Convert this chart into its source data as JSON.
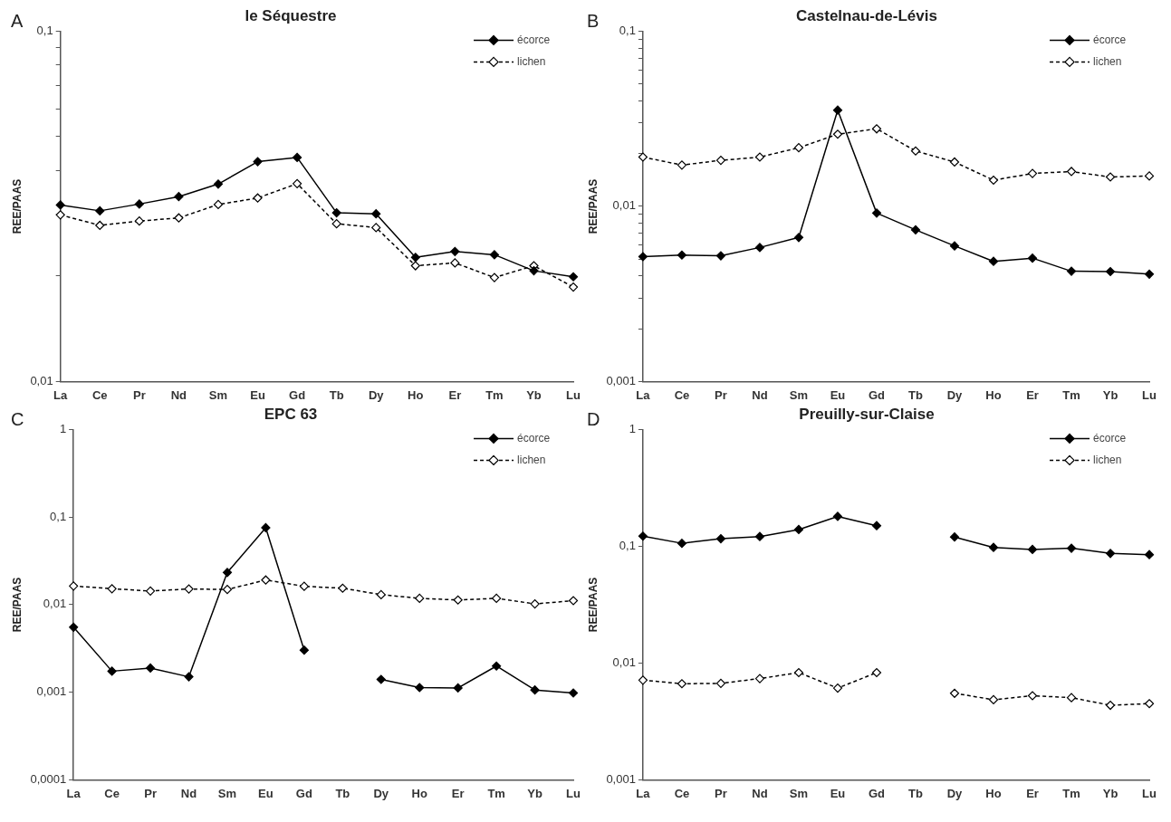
{
  "chart_data": [
    {
      "type": "line",
      "title": "le Séquestre",
      "annotations": [
        "A"
      ],
      "ylabel": "REE/PAAS",
      "categories": [
        "La",
        "Ce",
        "Pr",
        "Nd",
        "Sm",
        "Eu",
        "Gd",
        "Tb",
        "Dy",
        "Ho",
        "Er",
        "Tm",
        "Yb",
        "Lu"
      ],
      "log": "y",
      "ylim": [
        0.01,
        0.1
      ],
      "yticks": [
        {
          "value": 0.01,
          "label": "0,01"
        },
        {
          "value": 0.02,
          "label": null
        },
        {
          "value": 0.03,
          "label": null
        },
        {
          "value": 0.04,
          "label": null
        },
        {
          "value": 0.05,
          "label": null
        },
        {
          "value": 0.06,
          "label": null
        },
        {
          "value": 0.07,
          "label": null
        },
        {
          "value": 0.08,
          "label": null
        },
        {
          "value": 0.09,
          "label": null
        },
        {
          "value": 0.1,
          "label": "0,1"
        }
      ],
      "grid": false,
      "legend": "top right",
      "marker": "diamond",
      "series": [
        {
          "name": "écorce",
          "color": "#000000",
          "line_style": "solid",
          "values": [
            0.0319,
            0.0307,
            0.0321,
            0.0337,
            0.0366,
            0.0424,
            0.0436,
            0.0303,
            0.0301,
            0.0226,
            0.0235,
            0.023,
            0.0207,
            0.0199
          ]
        },
        {
          "name": "lichen",
          "color": "#000000",
          "line_style": "dashed",
          "values": [
            0.0299,
            0.0279,
            0.0287,
            0.0293,
            0.032,
            0.0334,
            0.0367,
            0.0282,
            0.0275,
            0.0214,
            0.0218,
            0.0198,
            0.0214,
            0.0186
          ]
        }
      ]
    },
    {
      "type": "line",
      "title": "Castelnau-de-Lévis",
      "annotations": [
        "B"
      ],
      "ylabel": "REE/PAAS",
      "categories": [
        "La",
        "Ce",
        "Pr",
        "Nd",
        "Sm",
        "Eu",
        "Gd",
        "Tb",
        "Dy",
        "Ho",
        "Er",
        "Tm",
        "Yb",
        "Lu"
      ],
      "log": "y",
      "ylim": [
        0.001,
        0.1
      ],
      "yticks": [
        {
          "value": 0.001,
          "label": "0,001"
        },
        {
          "value": 0.002,
          "label": null
        },
        {
          "value": 0.003,
          "label": null
        },
        {
          "value": 0.004,
          "label": null
        },
        {
          "value": 0.005,
          "label": null
        },
        {
          "value": 0.006,
          "label": null
        },
        {
          "value": 0.007,
          "label": null
        },
        {
          "value": 0.008,
          "label": null
        },
        {
          "value": 0.009,
          "label": null
        },
        {
          "value": 0.01,
          "label": "0,01"
        },
        {
          "value": 0.02,
          "label": null
        },
        {
          "value": 0.03,
          "label": null
        },
        {
          "value": 0.04,
          "label": null
        },
        {
          "value": 0.05,
          "label": null
        },
        {
          "value": 0.06,
          "label": null
        },
        {
          "value": 0.07,
          "label": null
        },
        {
          "value": 0.08,
          "label": null
        },
        {
          "value": 0.09,
          "label": null
        },
        {
          "value": 0.1,
          "label": "0,1"
        }
      ],
      "grid": false,
      "legend": "top right",
      "marker": "diamond",
      "series": [
        {
          "name": "écorce",
          "color": "#000000",
          "line_style": "solid",
          "values": [
            0.00516,
            0.00527,
            0.00522,
            0.00582,
            0.00664,
            0.0354,
            0.00915,
            0.00734,
            0.00594,
            0.00485,
            0.00506,
            0.00426,
            0.00424,
            0.0041
          ]
        },
        {
          "name": "lichen",
          "color": "#000000",
          "line_style": "dashed",
          "values": [
            0.0191,
            0.0172,
            0.0183,
            0.0191,
            0.0216,
            0.0258,
            0.0277,
            0.0207,
            0.0179,
            0.0141,
            0.0154,
            0.0158,
            0.0147,
            0.0149
          ]
        }
      ]
    },
    {
      "type": "line",
      "title": "EPC 63",
      "annotations": [
        "C"
      ],
      "ylabel": "REE/PAAS",
      "categories": [
        "La",
        "Ce",
        "Pr",
        "Nd",
        "Sm",
        "Eu",
        "Gd",
        "Tb",
        "Dy",
        "Ho",
        "Er",
        "Tm",
        "Yb",
        "Lu"
      ],
      "log": "y",
      "ylim": [
        0.0001,
        1
      ],
      "yticks": [
        {
          "value": 0.0001,
          "label": "0,0001"
        },
        {
          "value": 0.001,
          "label": "0,001"
        },
        {
          "value": 0.01,
          "label": "0,01"
        },
        {
          "value": 0.1,
          "label": "0,1"
        },
        {
          "value": 1,
          "label": "1"
        }
      ],
      "grid": false,
      "legend": "top right",
      "marker": "diamond",
      "series": [
        {
          "name": "écorce",
          "color": "#000000",
          "line_style": "solid",
          "values": [
            0.00552,
            0.00174,
            0.00189,
            0.0015,
            0.0233,
            0.0755,
            0.00302,
            null,
            0.0014,
            0.00113,
            0.00112,
            0.00199,
            0.00106,
            0.00098
          ]
        },
        {
          "name": "lichen",
          "color": "#000000",
          "line_style": "dashed",
          "values": [
            0.0163,
            0.0152,
            0.0143,
            0.0151,
            0.0149,
            0.0191,
            0.0162,
            0.0154,
            0.013,
            0.0118,
            0.0113,
            0.0118,
            0.0102,
            0.0111
          ]
        }
      ]
    },
    {
      "type": "line",
      "title": "Preuilly-sur-Claise",
      "annotations": [
        "D"
      ],
      "ylabel": "REE/PAAS",
      "categories": [
        "La",
        "Ce",
        "Pr",
        "Nd",
        "Sm",
        "Eu",
        "Gd",
        "Tb",
        "Dy",
        "Ho",
        "Er",
        "Tm",
        "Yb",
        "Lu"
      ],
      "log": "y",
      "ylim": [
        0.001,
        1
      ],
      "yticks": [
        {
          "value": 0.001,
          "label": "0,001"
        },
        {
          "value": 0.01,
          "label": "0,01"
        },
        {
          "value": 0.1,
          "label": "0,1"
        },
        {
          "value": 1,
          "label": "1"
        }
      ],
      "grid": false,
      "legend": "top right",
      "marker": "diamond",
      "series": [
        {
          "name": "écorce",
          "color": "#000000",
          "line_style": "solid",
          "values": [
            0.122,
            0.106,
            0.116,
            0.121,
            0.139,
            0.18,
            0.15,
            null,
            0.12,
            0.0977,
            0.0939,
            0.0962,
            0.0868,
            0.0848
          ]
        },
        {
          "name": "lichen",
          "color": "#000000",
          "line_style": "dashed",
          "values": [
            0.00713,
            0.00665,
            0.0067,
            0.00736,
            0.00828,
            0.0061,
            0.00828,
            null,
            0.00551,
            0.00485,
            0.00525,
            0.00505,
            0.00435,
            0.00449
          ]
        }
      ]
    }
  ]
}
